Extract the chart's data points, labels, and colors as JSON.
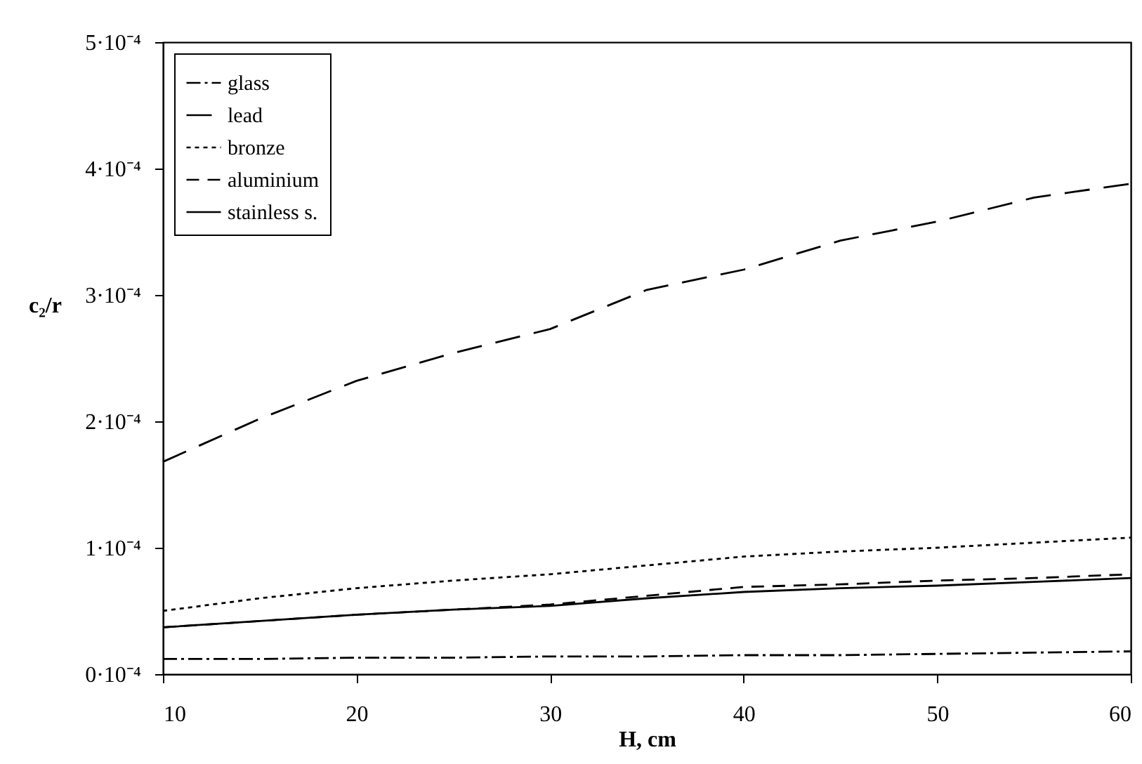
{
  "chart_data": {
    "type": "line",
    "xlabel": "H, cm",
    "ylabel": "c₂/r",
    "x": [
      10,
      15,
      20,
      25,
      30,
      35,
      40,
      45,
      50,
      55,
      60
    ],
    "series": [
      {
        "name": "glass",
        "color": "#000000",
        "line_style": "dashed",
        "values": [
          1.2e-05,
          1.2e-05,
          1.3e-05,
          1.3e-05,
          1.4e-05,
          1.4e-05,
          1.5e-05,
          1.5e-05,
          1.6e-05,
          1.7e-05,
          1.8e-05
        ]
      },
      {
        "name": "lead",
        "color": "#000000",
        "line_style": "dashed",
        "values": [
          0.000168,
          0.000202,
          0.000232,
          0.000254,
          0.000273,
          0.000304,
          0.00032,
          0.000343,
          0.000358,
          0.000377,
          0.000388
        ]
      },
      {
        "name": "bronze",
        "color": "#000000",
        "line_style": "dotted",
        "values": [
          5e-05,
          6e-05,
          6.8e-05,
          7.4e-05,
          7.9e-05,
          8.6e-05,
          9.3e-05,
          9.7e-05,
          0.0001,
          0.000104,
          0.000108
        ]
      },
      {
        "name": "aluminium",
        "color": "#000000",
        "line_style": "dashed",
        "values": [
          3.7e-05,
          4.2e-05,
          4.7e-05,
          5.1e-05,
          5.5e-05,
          6.2e-05,
          6.9e-05,
          7.1e-05,
          7.4e-05,
          7.6e-05,
          7.9e-05
        ]
      },
      {
        "name": "stainless s.",
        "color": "#000000",
        "line_style": "solid",
        "values": [
          3.7e-05,
          4.2e-05,
          4.7e-05,
          5.1e-05,
          5.4e-05,
          6e-05,
          6.5e-05,
          6.8e-05,
          7e-05,
          7.3e-05,
          7.6e-05
        ]
      }
    ],
    "xlim": [
      10,
      60
    ],
    "xticks": [
      10,
      20,
      30,
      40,
      50,
      60
    ],
    "ylim": [
      0,
      0.0005
    ],
    "yticks": [
      {
        "value": 0,
        "label": "0·10⁻⁴"
      },
      {
        "value": 0.0001,
        "label": "1·10⁻⁴"
      },
      {
        "value": 0.0002,
        "label": "2·10⁻⁴"
      },
      {
        "value": 0.0003,
        "label": "3·10⁻⁴"
      },
      {
        "value": 0.0004,
        "label": "4·10⁻⁴"
      },
      {
        "value": 0.0005,
        "label": "5·10⁻⁴"
      }
    ],
    "grid": false,
    "legend": "top left",
    "marker": "none"
  }
}
